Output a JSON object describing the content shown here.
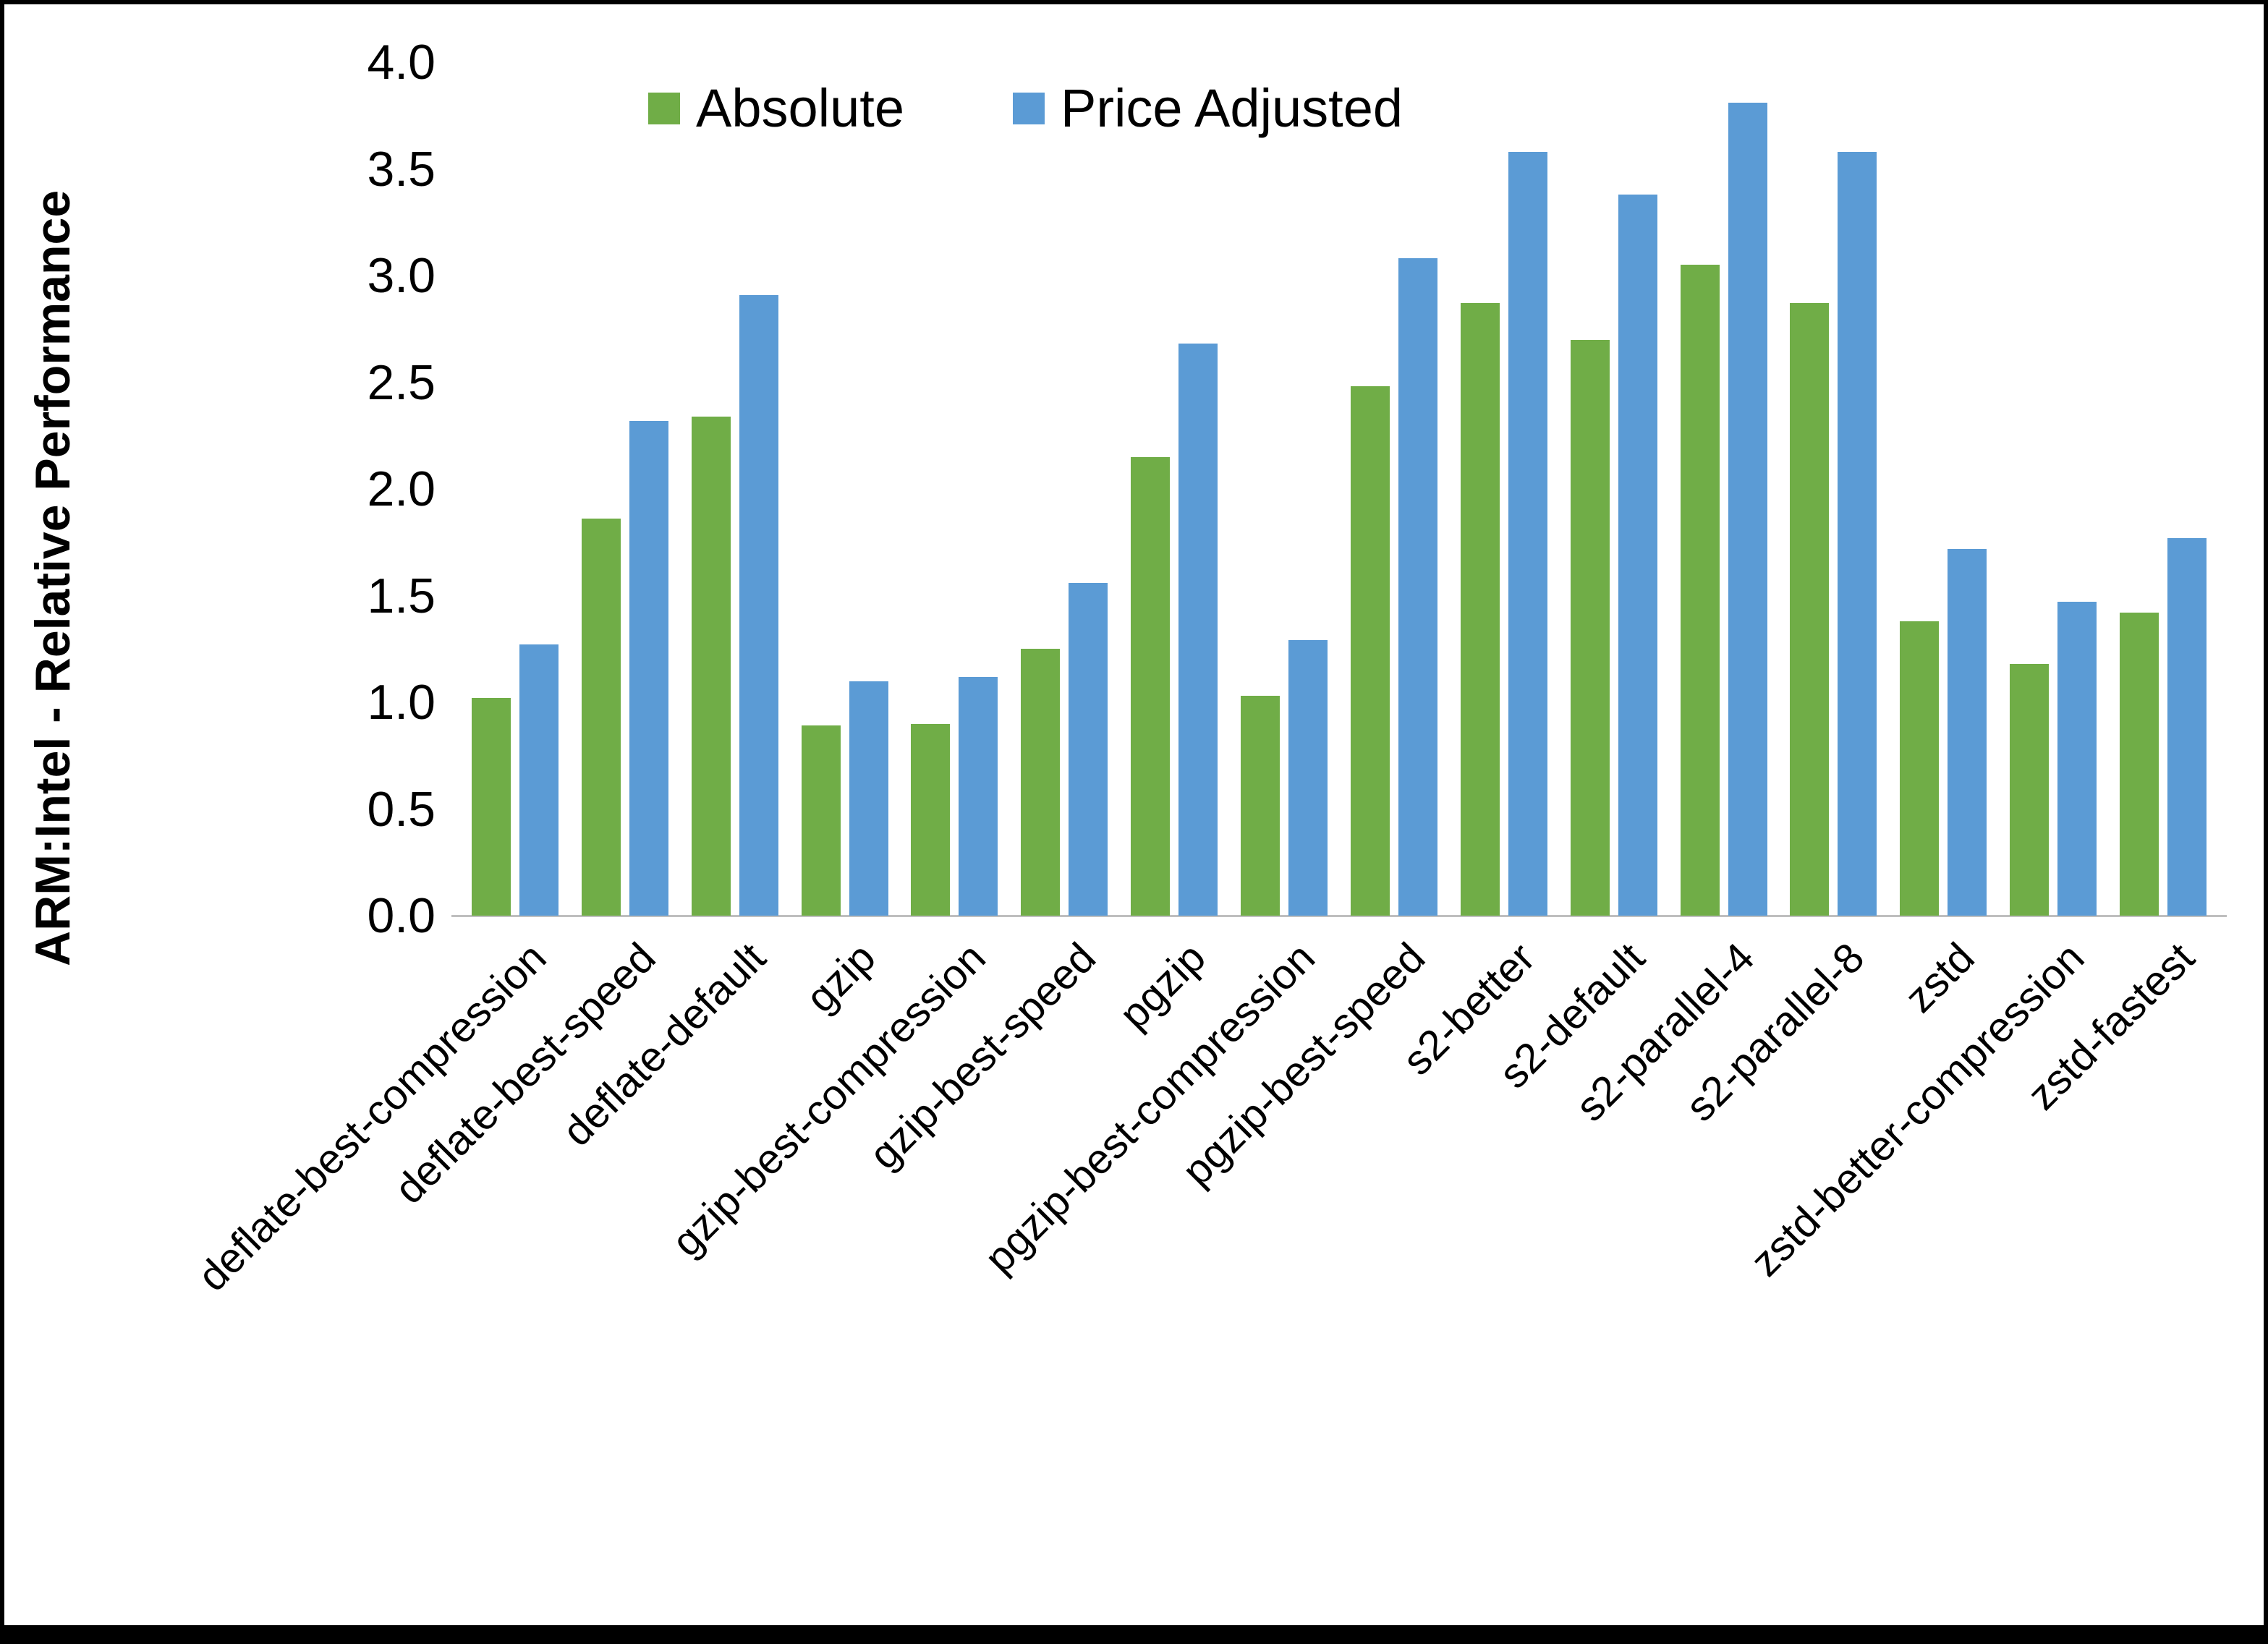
{
  "chart_data": {
    "type": "bar",
    "title": "",
    "xlabel": "",
    "ylabel": "ARM:Intel - Relative Performance",
    "ylim": [
      0,
      4
    ],
    "ytick_step": 0.5,
    "grid": false,
    "legend_position": "top",
    "categories": [
      "deflate-best-compression",
      "deflate-best-speed",
      "deflate-default",
      "gzip",
      "gzip-best-compression",
      "gzip-best-speed",
      "pgzip",
      "pgzip-best-compression",
      "pgzip-best-speed",
      "s2-better",
      "s2-default",
      "s2-parallel-4",
      "s2-parallel-8",
      "zstd",
      "zstd-better-compression",
      "zstd-fastest"
    ],
    "series": [
      {
        "name": "Absolute",
        "color": "#70AD47",
        "values": [
          1.02,
          1.86,
          2.34,
          0.89,
          0.9,
          1.25,
          2.15,
          1.03,
          2.48,
          2.87,
          2.7,
          3.05,
          2.87,
          1.38,
          1.18,
          1.42
        ]
      },
      {
        "name": "Price Adjusted",
        "color": "#5B9BD5",
        "values": [
          1.27,
          2.32,
          2.91,
          1.1,
          1.12,
          1.56,
          2.68,
          1.29,
          3.08,
          3.58,
          3.38,
          3.81,
          3.58,
          1.72,
          1.47,
          1.77
        ]
      }
    ]
  }
}
